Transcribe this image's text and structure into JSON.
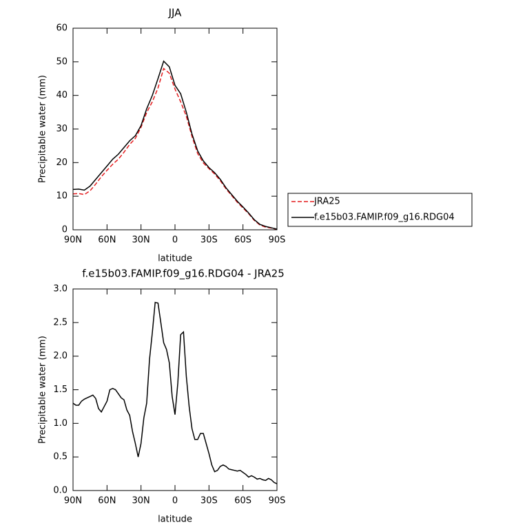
{
  "chart_data": [
    {
      "type": "line",
      "title": "JJA",
      "xlabel": "latitude",
      "ylabel": "Precipitable water (mm)",
      "x": [
        90,
        85,
        80,
        75,
        70,
        65,
        60,
        55,
        50,
        45,
        40,
        35,
        30,
        25,
        20,
        15,
        10,
        5,
        0,
        -5,
        -10,
        -15,
        -20,
        -25,
        -30,
        -35,
        -40,
        -45,
        -50,
        -55,
        -60,
        -65,
        -70,
        -75,
        -80,
        -85,
        -90
      ],
      "series": [
        {
          "name": "JRA25",
          "color": "#e41a1c",
          "linestyle": "dashed",
          "values": [
            10.7,
            10.8,
            10.5,
            11.6,
            13.6,
            15.8,
            17.7,
            19.5,
            21,
            23.1,
            25.4,
            27.2,
            30.5,
            34.9,
            38.1,
            42.2,
            48,
            46.6,
            41.9,
            38.1,
            33.8,
            27.8,
            22.7,
            19.9,
            18.2,
            16.6,
            14.6,
            12.2,
            10.2,
            8.2,
            6.5,
            4.8,
            2.8,
            1.4,
            0.8,
            0.5,
            0.1
          ]
        },
        {
          "name": "f.e15b03.FAMIP.f09_g16.RDG04",
          "color": "#000000",
          "linestyle": "solid",
          "values": [
            12,
            12.1,
            11.8,
            13,
            15,
            17,
            19,
            21,
            22.5,
            24.5,
            26.5,
            28,
            31,
            36,
            40,
            45,
            50.2,
            48.5,
            43,
            40.5,
            35,
            28.5,
            23.5,
            20.5,
            18.5,
            17,
            15,
            12.5,
            10.5,
            8.5,
            6.8,
            5,
            3,
            1.6,
            1,
            0.6,
            0.2
          ]
        }
      ],
      "xlim": [
        90,
        -90
      ],
      "xticks": [
        {
          "value": 90,
          "label": "90N"
        },
        {
          "value": 60,
          "label": "60N"
        },
        {
          "value": 30,
          "label": "30N"
        },
        0,
        {
          "value": -30,
          "label": "30S"
        },
        {
          "value": -60,
          "label": "60S"
        },
        {
          "value": -90,
          "label": "90S"
        }
      ],
      "ylim": [
        0,
        60
      ],
      "yticks": [
        0,
        10,
        20,
        30,
        40,
        50,
        60
      ],
      "legend": "right"
    },
    {
      "type": "line",
      "title": "f.e15b03.FAMIP.f09_g16.RDG04 - JRA25",
      "xlabel": "latitude",
      "ylabel": "Precipitable water (mm)",
      "x": [
        90,
        87.5,
        85,
        82.5,
        80,
        77.5,
        75,
        72.5,
        70,
        67.5,
        65,
        62.5,
        60,
        57.5,
        55,
        52.5,
        50,
        47.5,
        45,
        42.5,
        40,
        37.5,
        35,
        32.5,
        30,
        27.5,
        25,
        22.5,
        20,
        17.5,
        15,
        12.5,
        10,
        7.5,
        5,
        2.5,
        0,
        -2.5,
        -5,
        -7.5,
        -10,
        -12.5,
        -15,
        -17.5,
        -20,
        -22.5,
        -25,
        -27.5,
        -30,
        -32.5,
        -35,
        -37.5,
        -40,
        -42.5,
        -45,
        -47.5,
        -50,
        -52.5,
        -55,
        -57.5,
        -60,
        -62.5,
        -65,
        -67.5,
        -70,
        -72.5,
        -75,
        -77.5,
        -80,
        -82.5,
        -85,
        -87.5,
        -90
      ],
      "series": [
        {
          "color": "#000000",
          "linestyle": "solid",
          "values": [
            1.3,
            1.27,
            1.27,
            1.33,
            1.36,
            1.38,
            1.4,
            1.42,
            1.37,
            1.22,
            1.17,
            1.25,
            1.33,
            1.5,
            1.52,
            1.5,
            1.44,
            1.38,
            1.35,
            1.2,
            1.12,
            0.88,
            0.7,
            0.5,
            0.7,
            1.08,
            1.3,
            1.95,
            2.35,
            2.8,
            2.79,
            2.5,
            2.2,
            2.1,
            1.9,
            1.4,
            1.13,
            1.6,
            2.32,
            2.36,
            1.7,
            1.25,
            0.92,
            0.76,
            0.76,
            0.85,
            0.85,
            0.7,
            0.55,
            0.38,
            0.28,
            0.3,
            0.36,
            0.38,
            0.36,
            0.32,
            0.31,
            0.3,
            0.29,
            0.3,
            0.27,
            0.24,
            0.2,
            0.22,
            0.2,
            0.17,
            0.18,
            0.16,
            0.15,
            0.18,
            0.16,
            0.12,
            0.1
          ]
        }
      ],
      "xlim": [
        90,
        -90
      ],
      "xticks": [
        {
          "value": 90,
          "label": "90N"
        },
        {
          "value": 60,
          "label": "60N"
        },
        {
          "value": 30,
          "label": "30N"
        },
        0,
        {
          "value": -30,
          "label": "30S"
        },
        {
          "value": -60,
          "label": "60S"
        },
        {
          "value": -90,
          "label": "90S"
        }
      ],
      "ylim": [
        0,
        3
      ],
      "yticks": [
        {
          "value": 0,
          "label": "0.0"
        },
        0.5,
        {
          "value": 1,
          "label": "1.0"
        },
        1.5,
        {
          "value": 2,
          "label": "2.0"
        },
        2.5,
        {
          "value": 3,
          "label": "3.0"
        }
      ]
    }
  ]
}
